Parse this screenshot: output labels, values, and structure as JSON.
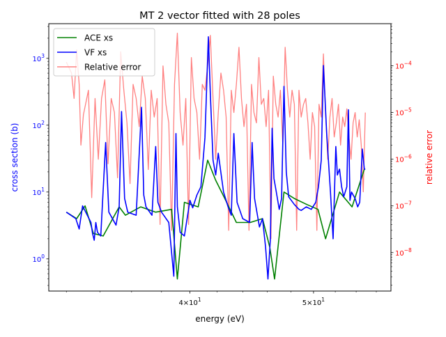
{
  "chart_data": {
    "type": "line",
    "title": "MT 2 vector fitted with 28 poles",
    "xlabel": "energy (eV)",
    "ylabel_left": "cross section (b)",
    "ylabel_right": "relative error",
    "x_scale": "log",
    "y_left_scale": "log",
    "y_right_scale": "log",
    "xlim": [
      31.0,
      57.5
    ],
    "ylim_left": [
      0.33,
      3300
    ],
    "ylim_right": [
      1.5e-09,
      0.0008
    ],
    "x_ticks": [
      {
        "value": 40,
        "base": "4",
        "exp": "1"
      },
      {
        "value": 50,
        "base": "5",
        "exp": "1"
      }
    ],
    "y_left_ticks": [
      {
        "value": 1,
        "base": "10",
        "exp": "0"
      },
      {
        "value": 10,
        "base": "10",
        "exp": "1"
      },
      {
        "value": 100,
        "base": "10",
        "exp": "2"
      },
      {
        "value": 1000,
        "base": "10",
        "exp": "3"
      }
    ],
    "y_right_ticks": [
      {
        "value": 1e-08,
        "base": "10",
        "exp": "−8"
      },
      {
        "value": 1e-07,
        "base": "10",
        "exp": "−7"
      },
      {
        "value": 1e-06,
        "base": "10",
        "exp": "−6"
      },
      {
        "value": 1e-05,
        "base": "10",
        "exp": "−5"
      },
      {
        "value": 0.0001,
        "base": "10",
        "exp": "−4"
      }
    ],
    "legend_position": "top-left",
    "grid": false,
    "series": [
      {
        "name": "ACE xs",
        "axis": "left",
        "color": "#008000",
        "x": [
          32.0,
          32.6,
          33.1,
          33.6,
          34.2,
          35.2,
          35.6,
          36.6,
          37.6,
          38.7,
          39.1,
          39.6,
          40.6,
          41.3,
          41.9,
          42.6,
          43.5,
          44.6,
          45.6,
          46.2,
          46.6,
          47.4,
          48.3,
          49.4,
          50.4,
          51.1,
          52.4,
          53.6,
          54.8
        ],
        "y": [
          5.0,
          4.0,
          6.2,
          2.4,
          2.2,
          6.0,
          4.5,
          6.0,
          5.0,
          5.5,
          0.5,
          7.0,
          6.0,
          30,
          15,
          8.0,
          3.5,
          3.5,
          4.0,
          1.5,
          0.5,
          10,
          8.0,
          6.5,
          5.5,
          2.0,
          10,
          6.0,
          22
        ]
      },
      {
        "name": "VF xs",
        "axis": "left",
        "color": "#0000ff",
        "x": [
          32.0,
          32.55,
          32.75,
          32.95,
          33.45,
          33.55,
          33.65,
          33.75,
          33.85,
          34.05,
          34.35,
          34.55,
          35.0,
          35.2,
          35.35,
          35.55,
          35.75,
          36.3,
          36.65,
          36.8,
          36.95,
          37.35,
          37.6,
          37.75,
          38.0,
          38.5,
          38.85,
          39.0,
          39.1,
          39.3,
          39.6,
          40.0,
          40.2,
          40.5,
          40.8,
          41.1,
          41.35,
          41.5,
          41.7,
          41.9,
          42.1,
          42.5,
          42.85,
          43.1,
          43.3,
          43.55,
          44.0,
          44.55,
          44.75,
          44.95,
          45.35,
          45.6,
          45.85,
          46.05,
          46.25,
          46.4,
          46.55,
          46.75,
          47.0,
          47.2,
          47.4,
          47.6,
          47.8,
          48.3,
          48.7,
          48.9,
          49.35,
          49.8,
          50.2,
          50.45,
          50.7,
          50.9,
          51.2,
          51.55,
          51.8,
          52.05,
          52.2,
          52.4,
          52.6,
          52.8,
          53.1,
          53.25,
          53.4,
          53.55,
          53.9,
          54.15,
          54.35,
          54.6,
          54.8,
          54.9
        ],
        "y": [
          5.0,
          4.0,
          2.8,
          6.2,
          3.5,
          2.4,
          1.9,
          3.5,
          2.5,
          2.2,
          55,
          5.0,
          3.2,
          6.0,
          160,
          8.0,
          5.0,
          4.5,
          185,
          9.0,
          6.0,
          4.5,
          48,
          7.0,
          5.0,
          3.5,
          0.55,
          75,
          6.0,
          2.5,
          2.2,
          7.5,
          5.8,
          9.0,
          12,
          65,
          2100,
          300,
          30,
          18,
          38,
          10,
          6.0,
          4.5,
          75,
          7.0,
          4.0,
          3.5,
          55,
          8.0,
          3.0,
          4.0,
          1.5,
          0.5,
          2.0,
          90,
          16,
          10,
          5.5,
          8.0,
          380,
          20,
          8.5,
          6.5,
          5.5,
          5.3,
          6.0,
          5.5,
          7.0,
          12,
          30,
          780,
          75,
          10,
          2.0,
          48,
          18,
          22,
          12,
          8.5,
          12,
          170,
          7.5,
          10,
          8.0,
          6.0,
          7.0,
          44,
          22,
          22
        ]
      },
      {
        "name": "Relative error",
        "axis": "right",
        "color": "#ff8080",
        "x": [
          32.0,
          32.3,
          32.45,
          32.6,
          32.75,
          32.85,
          33.0,
          33.3,
          33.5,
          33.7,
          33.9,
          34.1,
          34.3,
          34.5,
          34.7,
          34.9,
          35.1,
          35.3,
          35.5,
          35.7,
          35.9,
          36.1,
          36.3,
          36.5,
          36.7,
          36.9,
          37.1,
          37.3,
          37.5,
          37.7,
          37.9,
          38.1,
          38.3,
          38.5,
          38.7,
          38.9,
          39.1,
          39.3,
          39.5,
          39.7,
          39.9,
          40.1,
          40.3,
          40.5,
          40.7,
          40.9,
          41.1,
          41.3,
          41.5,
          41.7,
          41.9,
          42.1,
          42.3,
          42.5,
          42.7,
          42.9,
          43.1,
          43.3,
          43.5,
          43.7,
          43.9,
          44.1,
          44.3,
          44.5,
          44.7,
          44.9,
          45.1,
          45.3,
          45.5,
          45.7,
          45.9,
          46.1,
          46.3,
          46.5,
          46.7,
          46.9,
          47.1,
          47.3,
          47.5,
          47.7,
          47.9,
          48.1,
          48.3,
          48.5,
          48.7,
          48.9,
          49.1,
          49.3,
          49.5,
          49.7,
          49.9,
          50.1,
          50.3,
          50.5,
          50.7,
          50.9,
          51.1,
          51.3,
          51.5,
          51.7,
          51.9,
          52.1,
          52.3,
          52.5,
          52.7,
          52.9,
          53.1,
          53.3,
          53.5,
          53.7,
          53.9,
          54.1,
          54.3,
          54.5,
          54.7,
          54.9
        ],
        "y": [
          0.00012,
          7e-05,
          2e-05,
          0.00022,
          4e-05,
          2e-06,
          9e-06,
          3e-05,
          1.5e-07,
          2e-05,
          1e-06,
          2e-05,
          5e-05,
          8e-07,
          2e-05,
          1e-05,
          4e-07,
          0.0002,
          3e-05,
          6e-06,
          3e-07,
          4e-05,
          2e-05,
          5e-06,
          6e-05,
          2e-05,
          6e-07,
          3e-05,
          8e-06,
          2e-05,
          4e-08,
          0.0001,
          1.5e-05,
          6e-06,
          3e-08,
          4e-05,
          0.0005,
          1e-05,
          2e-06,
          2e-05,
          4e-08,
          0.00015,
          2e-05,
          1e-05,
          1e-06,
          4e-05,
          3e-05,
          0.0001,
          0.00045,
          2e-05,
          1e-06,
          1e-05,
          7e-05,
          3e-05,
          8e-06,
          3e-08,
          3e-05,
          1e-05,
          4e-05,
          0.00025,
          2e-05,
          5e-06,
          1.5e-05,
          3e-08,
          4e-05,
          1e-05,
          6e-06,
          0.00015,
          1.5e-05,
          2e-05,
          5e-06,
          3e-05,
          2e-08,
          6e-05,
          1.5e-05,
          8e-06,
          3e-05,
          2e-06,
          0.00025,
          3e-05,
          8e-06,
          3e-05,
          1.5e-05,
          3e-08,
          3e-05,
          8e-06,
          1.5e-05,
          2e-05,
          6e-06,
          1e-06,
          1e-05,
          5e-06,
          3e-08,
          1.5e-05,
          8e-06,
          0.00018,
          1e-05,
          1e-06,
          8e-06,
          2e-05,
          3e-06,
          6e-06,
          1.5e-05,
          2e-06,
          8e-06,
          5e-06,
          1.2e-05,
          3e-06,
          1e-06,
          6e-06,
          1e-05,
          3e-06,
          7e-06,
          2e-06,
          2e-07,
          1e-05
        ]
      }
    ]
  }
}
